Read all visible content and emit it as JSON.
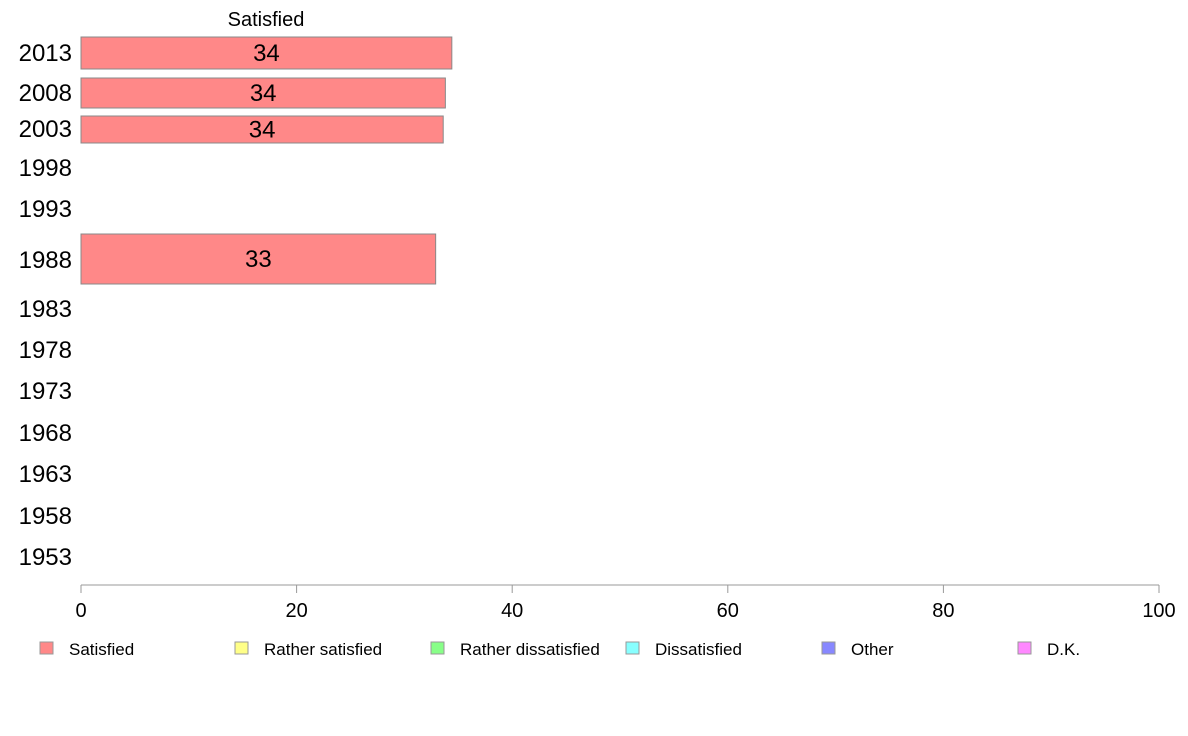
{
  "chart_data": {
    "type": "bar",
    "orientation": "horizontal",
    "title": "",
    "series_header": "Satisfied",
    "xlabel": "",
    "ylabel": "",
    "xlim": [
      0,
      100
    ],
    "xticks": [
      0,
      20,
      40,
      60,
      80,
      100
    ],
    "categories": [
      "2013",
      "2008",
      "2003",
      "1998",
      "1993",
      "1988",
      "1983",
      "1978",
      "1973",
      "1968",
      "1963",
      "1958",
      "1953"
    ],
    "series": [
      {
        "name": "Satisfied",
        "values": [
          34.4,
          33.8,
          33.6,
          null,
          null,
          32.9,
          null,
          null,
          null,
          null,
          null,
          null,
          null
        ],
        "labels": [
          "34",
          "34",
          "34",
          "",
          "",
          "33",
          "",
          "",
          "",
          "",
          "",
          "",
          ""
        ]
      }
    ],
    "legend": {
      "position": "bottom",
      "items": [
        {
          "label": "Satisfied",
          "color": "#ff8888"
        },
        {
          "label": "Rather satisfied",
          "color": "#ffff88"
        },
        {
          "label": "Rather dissatisfied",
          "color": "#88ff88"
        },
        {
          "label": "Dissatisfied",
          "color": "#88ffff"
        },
        {
          "label": "Other",
          "color": "#8888ff"
        },
        {
          "label": "D.K.",
          "color": "#ff88ff"
        }
      ]
    },
    "colors": {
      "bar_fill": "#ff8888",
      "bar_stroke": "#888888",
      "axis": "#999999"
    },
    "grid": false
  }
}
